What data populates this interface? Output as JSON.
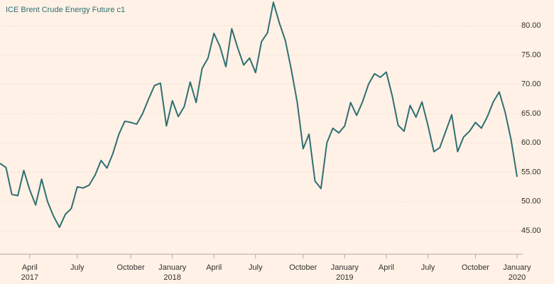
{
  "chart_data": {
    "type": "line",
    "title": "ICE Brent Crude Energy Future c1",
    "categories": [
      null,
      null,
      null,
      null,
      null,
      "April",
      null,
      null,
      null,
      null,
      null,
      null,
      null,
      "July",
      null,
      null,
      null,
      null,
      null,
      null,
      null,
      null,
      "October",
      null,
      null,
      null,
      null,
      null,
      null,
      "January",
      null,
      null,
      null,
      null,
      null,
      null,
      "April",
      null,
      null,
      null,
      null,
      null,
      null,
      "July",
      null,
      null,
      null,
      null,
      null,
      null,
      null,
      "October",
      null,
      null,
      null,
      null,
      null,
      null,
      "January",
      null,
      null,
      null,
      null,
      null,
      null,
      "April",
      null,
      null,
      null,
      null,
      null,
      null,
      "July",
      null,
      null,
      null,
      null,
      null,
      null,
      null,
      "October",
      null,
      null,
      null,
      null,
      null,
      null,
      "January"
    ],
    "category_years": [
      null,
      null,
      null,
      null,
      null,
      "2017",
      null,
      null,
      null,
      null,
      null,
      null,
      null,
      null,
      null,
      null,
      null,
      null,
      null,
      null,
      null,
      null,
      null,
      null,
      null,
      null,
      null,
      null,
      null,
      "2018",
      null,
      null,
      null,
      null,
      null,
      null,
      null,
      null,
      null,
      null,
      null,
      null,
      null,
      null,
      null,
      null,
      null,
      null,
      null,
      null,
      null,
      null,
      null,
      null,
      null,
      null,
      null,
      null,
      "2019",
      null,
      null,
      null,
      null,
      null,
      null,
      null,
      null,
      null,
      null,
      null,
      null,
      null,
      null,
      null,
      null,
      null,
      null,
      null,
      null,
      null,
      null,
      null,
      null,
      null,
      null,
      null,
      null,
      "2020"
    ],
    "series": [
      {
        "name": "ICE Brent Crude Energy Future c1",
        "color": "#2f6f73",
        "values": [
          56.5,
          55.8,
          51.2,
          51.0,
          55.3,
          52.0,
          49.4,
          53.8,
          50.0,
          47.5,
          45.6,
          47.8,
          48.8,
          52.5,
          52.3,
          52.8,
          54.5,
          57.0,
          55.7,
          58.2,
          61.5,
          63.7,
          63.5,
          63.2,
          65.0,
          67.5,
          69.8,
          70.2,
          62.9,
          67.2,
          64.5,
          66.2,
          70.4,
          66.9,
          72.7,
          74.5,
          78.7,
          76.5,
          73.0,
          79.5,
          76.2,
          73.3,
          74.5,
          72.0,
          77.3,
          78.8,
          84.0,
          80.5,
          77.5,
          72.6,
          67.0,
          59.0,
          61.5,
          53.5,
          52.2,
          60.0,
          62.5,
          61.7,
          62.9,
          66.9,
          64.7,
          67.0,
          70.0,
          71.8,
          71.2,
          72.1,
          68.0,
          63.0,
          62.0,
          66.4,
          64.4,
          67.0,
          63.0,
          58.5,
          59.2,
          62.0,
          64.8,
          58.5,
          61.0,
          62.0,
          63.5,
          62.5,
          64.5,
          67.0,
          68.7,
          65.2,
          60.5,
          54.2
        ]
      }
    ],
    "ylim": [
      41,
      84.4
    ],
    "yticks": [
      {
        "value": 45,
        "label": "45.00"
      },
      {
        "value": 50,
        "label": "50.00"
      },
      {
        "value": 55,
        "label": "55.00"
      },
      {
        "value": 60,
        "label": "60.00"
      },
      {
        "value": 65,
        "label": "65.00"
      },
      {
        "value": 70,
        "label": "70.00"
      },
      {
        "value": 75,
        "label": "75.00"
      },
      {
        "value": 80,
        "label": "80.00"
      }
    ],
    "grid": true
  }
}
